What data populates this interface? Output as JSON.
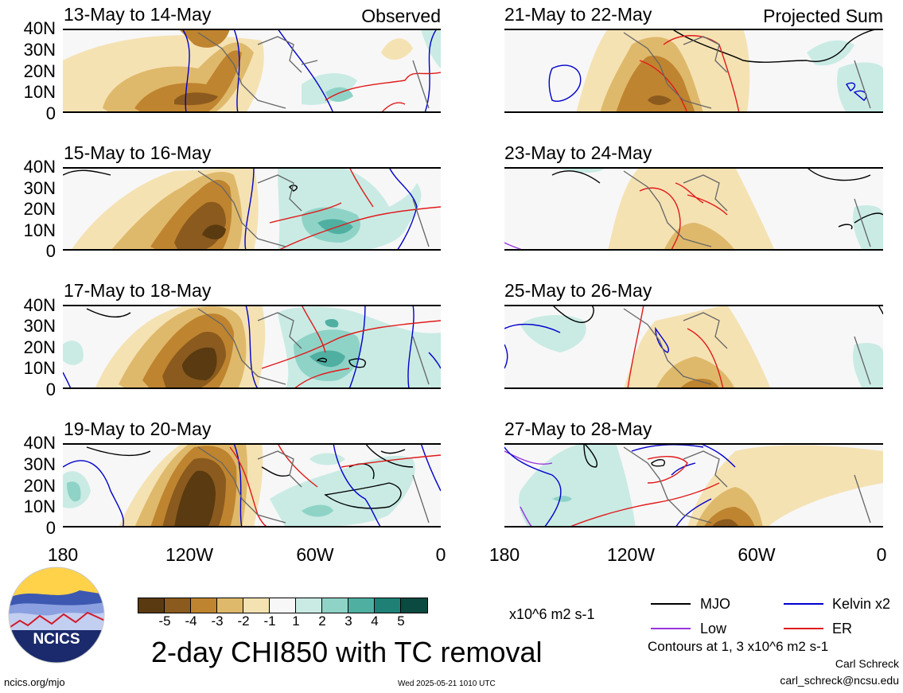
{
  "panels": [
    {
      "date": "13-May to 14-May",
      "tag": "Observed"
    },
    {
      "date": "15-May to 16-May",
      "tag": ""
    },
    {
      "date": "17-May to 18-May",
      "tag": ""
    },
    {
      "date": "19-May to 20-May",
      "tag": ""
    },
    {
      "date": "21-May to 22-May",
      "tag": "Projected Sum"
    },
    {
      "date": "23-May to 24-May",
      "tag": ""
    },
    {
      "date": "25-May to 26-May",
      "tag": ""
    },
    {
      "date": "27-May to 28-May",
      "tag": ""
    }
  ],
  "lat_labels": [
    "40N",
    "30N",
    "20N",
    "10N",
    "0"
  ],
  "lon_labels": [
    "180",
    "120W",
    "60W",
    "0"
  ],
  "colorbar": {
    "colors": [
      "#5a3a10",
      "#8b5a1e",
      "#bf842f",
      "#dfb96b",
      "#f5e2b3",
      "#f7f7f7",
      "#c9ebe4",
      "#8fd3c7",
      "#4fb0a2",
      "#1f8076",
      "#0b4a40"
    ],
    "ticks": [
      "-5",
      "-4",
      "-3",
      "-2",
      "-1",
      "1",
      "2",
      "3",
      "4",
      "5"
    ],
    "units": "x10^6 m2 s-1"
  },
  "main_title": "2-day CHI850 with TC removal",
  "legend": [
    {
      "label": "MJO",
      "color": "#000000"
    },
    {
      "label": "Kelvin x2",
      "color": "#0000cc"
    },
    {
      "label": "Low",
      "color": "#9a33dd"
    },
    {
      "label": "ER",
      "color": "#e01a1a"
    }
  ],
  "contours_note": "Contours at 1, 3 x10^6 m2 s-1",
  "author": "Carl Schreck",
  "email": "carl_schreck@ncsu.edu",
  "site": "ncics.org/mjo",
  "timestamp": "Wed 2025-05-21 1010 UTC",
  "logo_text": "NCICS"
}
